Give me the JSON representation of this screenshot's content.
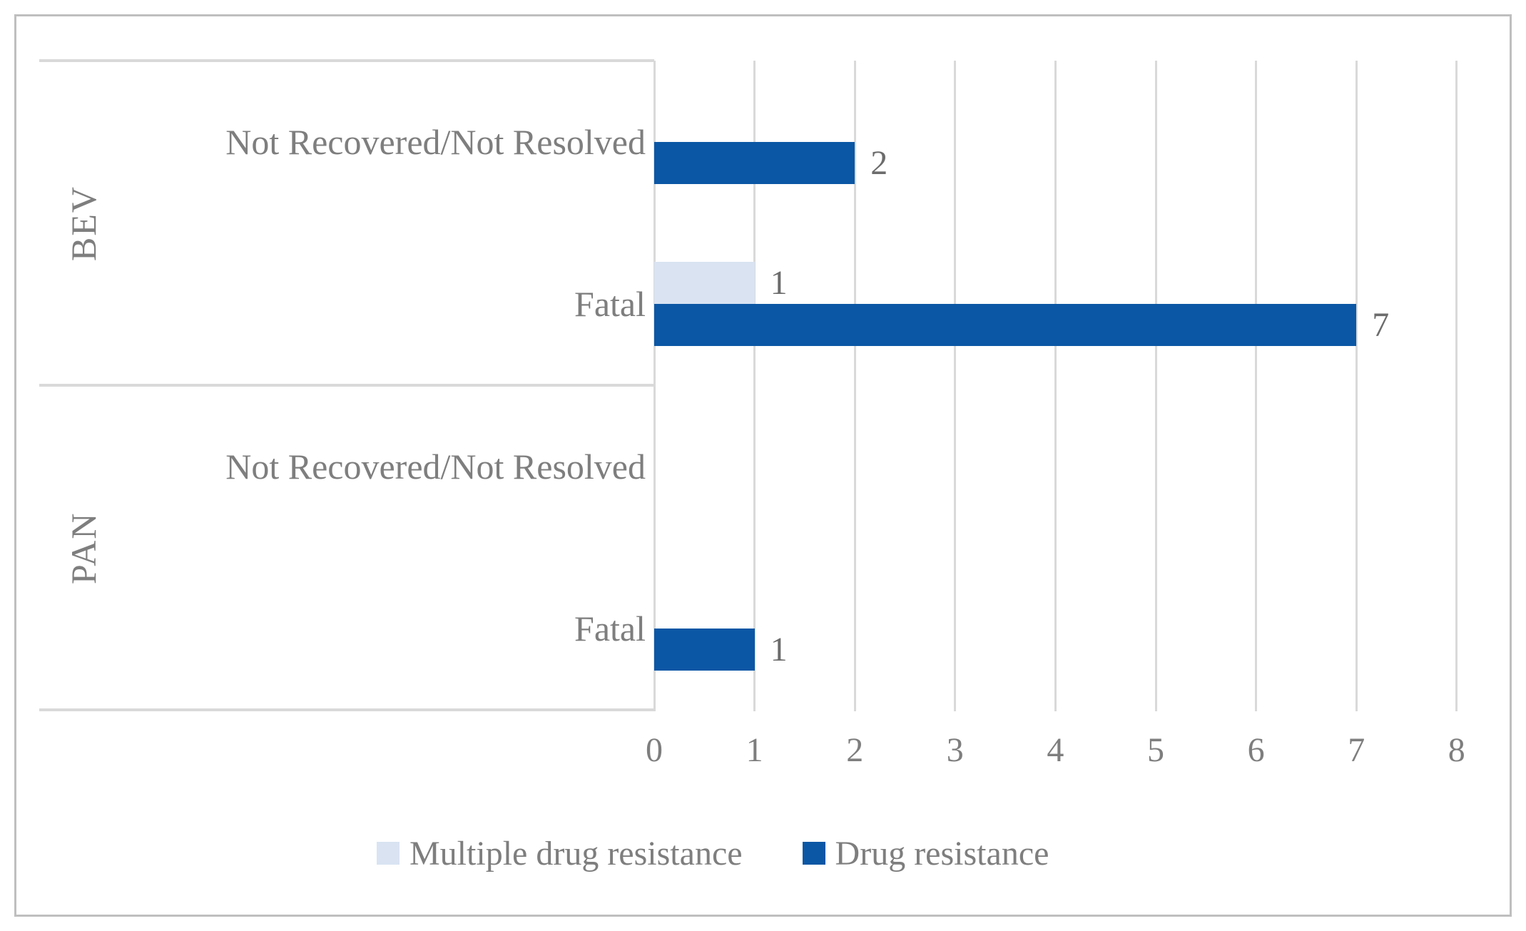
{
  "chart_data": {
    "type": "bar",
    "orientation": "horizontal",
    "title": "",
    "xlabel": "",
    "ylabel": "",
    "x_axis": {
      "min": 0,
      "max": 8,
      "ticks": [
        "0",
        "1",
        "2",
        "3",
        "4",
        "5",
        "6",
        "7",
        "8"
      ],
      "grid": true
    },
    "series": [
      {
        "name": "Multiple drug resistance",
        "color": "#D9E3F2"
      },
      {
        "name": "Drug resistance",
        "color": "#0B57A5"
      }
    ],
    "groups": [
      {
        "group": "BEV",
        "categories": [
          {
            "label": "Not Recovered/Not Resolved",
            "values": {
              "Multiple drug resistance": null,
              "Drug resistance": 2
            }
          },
          {
            "label": "Fatal",
            "values": {
              "Multiple drug resistance": 1,
              "Drug resistance": 7
            }
          }
        ]
      },
      {
        "group": "PAN",
        "categories": [
          {
            "label": "Not Recovered/Not Resolved",
            "values": {
              "Multiple drug resistance": null,
              "Drug resistance": null
            }
          },
          {
            "label": "Fatal",
            "values": {
              "Multiple drug resistance": null,
              "Drug resistance": 1
            }
          }
        ]
      }
    ],
    "legend_position": "bottom",
    "data_labels": true
  },
  "colors": {
    "bar_dark": "#0B57A5",
    "bar_light": "#D9E3F2",
    "gridline": "#D9D9D9",
    "figure_border": "#BFBFBF",
    "text_gray": "#7E7E7E",
    "value_gray": "#6C6C6C",
    "background": "#FFFFFF"
  },
  "legend": {
    "items": [
      {
        "label": "Multiple drug resistance"
      },
      {
        "label": "Drug resistance"
      }
    ]
  }
}
